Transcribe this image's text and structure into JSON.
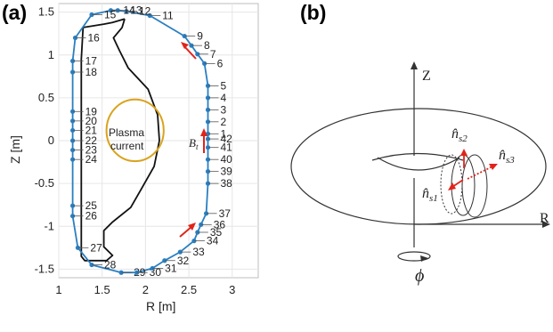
{
  "panel_a": {
    "label": "(a)",
    "xlabel": "R [m]",
    "ylabel": "Z [m]",
    "xticks": [
      "1",
      "1.5",
      "2",
      "2.5",
      "3"
    ],
    "yticks": [
      "1.5",
      "1",
      "0.5",
      "0",
      "-0.5",
      "-1",
      "-1.5"
    ],
    "plasma_line1": "Plasma",
    "plasma_line2": "current",
    "bt_main": "B",
    "bt_sub": "t",
    "colors": {
      "probe": "#2a7fc1",
      "wall": "#111111",
      "plasma": "#d9a31e",
      "arrow": "#e0241b",
      "grid": "#e6e6e6"
    }
  },
  "panel_b": {
    "label": "(b)",
    "z_axis": "Z",
    "r_axis": "R",
    "phi": "ϕ",
    "n_s2": "n̂s2",
    "n_s3": "n̂s3",
    "n_s1": "n̂s1",
    "n_s2_sub": "s2",
    "n_s3_sub": "s3",
    "n_s1_sub": "s1",
    "n_letter": "n̂"
  },
  "chart_data": {
    "type": "scatter",
    "xlabel": "R [m]",
    "ylabel": "Z [m]",
    "xlim": [
      1,
      3.3
    ],
    "ylim": [
      -1.6,
      1.6
    ],
    "grid": true,
    "probes": [
      {
        "id": "1",
        "R": 2.72,
        "Z": 0.08
      },
      {
        "id": "2",
        "R": 2.72,
        "Z": 0.22
      },
      {
        "id": "3",
        "R": 2.72,
        "Z": 0.36
      },
      {
        "id": "4",
        "R": 2.72,
        "Z": 0.5
      },
      {
        "id": "5",
        "R": 2.72,
        "Z": 0.64
      },
      {
        "id": "6",
        "R": 2.68,
        "Z": 0.9
      },
      {
        "id": "7",
        "R": 2.6,
        "Z": 1.01
      },
      {
        "id": "8",
        "R": 2.53,
        "Z": 1.11
      },
      {
        "id": "9",
        "R": 2.45,
        "Z": 1.22
      },
      {
        "id": "11",
        "R": 2.05,
        "Z": 1.46
      },
      {
        "id": "12",
        "R": 1.78,
        "Z": 1.51
      },
      {
        "id": "13",
        "R": 1.68,
        "Z": 1.52
      },
      {
        "id": "14",
        "R": 1.6,
        "Z": 1.52
      },
      {
        "id": "15",
        "R": 1.38,
        "Z": 1.47
      },
      {
        "id": "16",
        "R": 1.19,
        "Z": 1.2
      },
      {
        "id": "17",
        "R": 1.16,
        "Z": 0.93
      },
      {
        "id": "18",
        "R": 1.16,
        "Z": 0.8
      },
      {
        "id": "19",
        "R": 1.16,
        "Z": 0.34
      },
      {
        "id": "20",
        "R": 1.16,
        "Z": 0.23
      },
      {
        "id": "21",
        "R": 1.16,
        "Z": 0.12
      },
      {
        "id": "22",
        "R": 1.16,
        "Z": 0.0
      },
      {
        "id": "23",
        "R": 1.16,
        "Z": -0.11
      },
      {
        "id": "24",
        "R": 1.16,
        "Z": -0.22
      },
      {
        "id": "25",
        "R": 1.16,
        "Z": -0.76
      },
      {
        "id": "26",
        "R": 1.16,
        "Z": -0.88
      },
      {
        "id": "27",
        "R": 1.22,
        "Z": -1.25
      },
      {
        "id": "28",
        "R": 1.38,
        "Z": -1.45
      },
      {
        "id": "29",
        "R": 1.72,
        "Z": -1.54
      },
      {
        "id": "30",
        "R": 1.9,
        "Z": -1.54
      },
      {
        "id": "31",
        "R": 2.08,
        "Z": -1.49
      },
      {
        "id": "32",
        "R": 2.22,
        "Z": -1.4
      },
      {
        "id": "33",
        "R": 2.4,
        "Z": -1.3
      },
      {
        "id": "34",
        "R": 2.56,
        "Z": -1.17
      },
      {
        "id": "35",
        "R": 2.6,
        "Z": -1.07
      },
      {
        "id": "36",
        "R": 2.64,
        "Z": -0.98
      },
      {
        "id": "37",
        "R": 2.7,
        "Z": -0.85
      },
      {
        "id": "38",
        "R": 2.72,
        "Z": -0.5
      },
      {
        "id": "39",
        "R": 2.72,
        "Z": -0.36
      },
      {
        "id": "40",
        "R": 2.72,
        "Z": -0.22
      },
      {
        "id": "41",
        "R": 2.72,
        "Z": -0.08
      },
      {
        "id": "42",
        "R": 2.72,
        "Z": 0.02
      }
    ],
    "wall": [
      [
        1.76,
        1.42
      ],
      [
        1.62,
        1.38
      ],
      [
        1.52,
        1.36
      ],
      [
        1.28,
        1.32
      ],
      [
        1.26,
        0.95
      ],
      [
        1.26,
        0.4
      ],
      [
        1.26,
        -0.4
      ],
      [
        1.26,
        -1.35
      ],
      [
        1.3,
        -1.4
      ],
      [
        1.55,
        -1.4
      ],
      [
        1.62,
        -1.34
      ],
      [
        1.52,
        -1.24
      ],
      [
        1.52,
        -1.05
      ],
      [
        1.62,
        -0.95
      ],
      [
        1.83,
        -0.78
      ],
      [
        1.96,
        -0.55
      ],
      [
        2.1,
        -0.3
      ],
      [
        2.16,
        0.0
      ],
      [
        2.14,
        0.3
      ],
      [
        2.03,
        0.6
      ],
      [
        1.8,
        0.85
      ],
      [
        1.7,
        1.05
      ],
      [
        1.63,
        1.2
      ],
      [
        1.73,
        1.32
      ],
      [
        1.76,
        1.42
      ]
    ],
    "plasma_ellipse": {
      "R0": 1.88,
      "Z0": 0.12,
      "a": 0.33,
      "b": 0.36
    }
  }
}
